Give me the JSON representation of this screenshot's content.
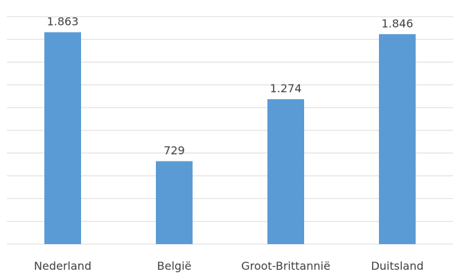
{
  "chart_data": {
    "type": "bar",
    "categories": [
      "Nederland",
      "België",
      "Groot-Brittannië",
      "Duitsland"
    ],
    "values": [
      1863,
      729,
      1274,
      1846
    ],
    "value_labels": [
      "1.863",
      "729",
      "1.274",
      "1.846"
    ],
    "title": "",
    "xlabel": "",
    "ylabel": "",
    "ylim": [
      0,
      2000
    ],
    "y_major_step": 200,
    "grid": true,
    "legend": "none",
    "colors": {
      "bar": "#5B9BD5",
      "gridline": "#D9D9D9",
      "text": "#404040"
    }
  }
}
